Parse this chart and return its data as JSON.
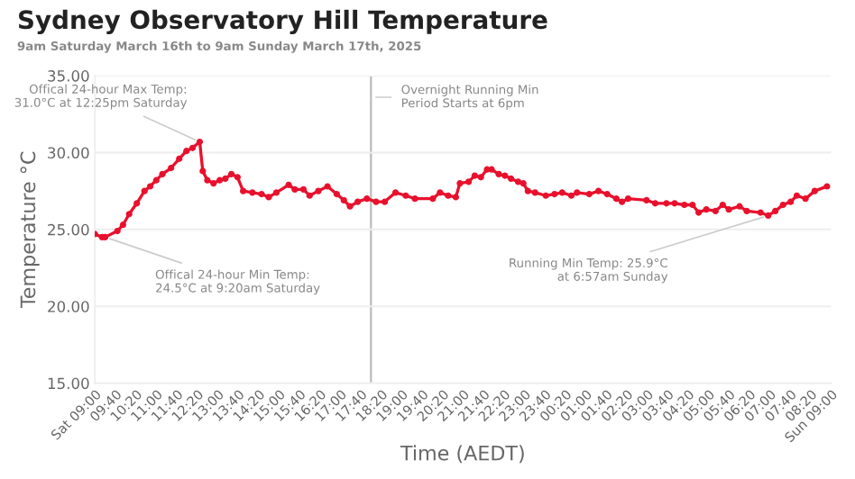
{
  "chart_data": {
    "type": "line",
    "title": "Sydney Observatory Hill Temperature",
    "subtitle": "9am Saturday March 16th to 9am Sunday March 17th, 2025",
    "xlabel": "Time (AEDT)",
    "ylabel": "Temperature °C",
    "series": [
      {
        "color": "#e8112d",
        "x": [
          "2025-03-16T09:00",
          "2025-03-16T09:14",
          "2025-03-16T09:20",
          "2025-03-16T09:44",
          "2025-03-16T09:55",
          "2025-03-16T10:07",
          "2025-03-16T10:22",
          "2025-03-16T10:37",
          "2025-03-16T10:48",
          "2025-03-16T11:00",
          "2025-03-16T11:12",
          "2025-03-16T11:29",
          "2025-03-16T11:45",
          "2025-03-16T11:59",
          "2025-03-16T12:11",
          "2025-03-16T12:25",
          "2025-03-16T12:31",
          "2025-03-16T12:40",
          "2025-03-16T12:52",
          "2025-03-16T13:04",
          "2025-03-16T13:15",
          "2025-03-16T13:27",
          "2025-03-16T13:39",
          "2025-03-16T13:50",
          "2025-03-16T14:08",
          "2025-03-16T14:26",
          "2025-03-16T14:40",
          "2025-03-16T14:55",
          "2025-03-16T15:19",
          "2025-03-16T15:31",
          "2025-03-16T15:48",
          "2025-03-16T16:00",
          "2025-03-16T16:17",
          "2025-03-16T16:35",
          "2025-03-16T16:53",
          "2025-03-16T17:07",
          "2025-03-16T17:19",
          "2025-03-16T17:34",
          "2025-03-16T17:52",
          "2025-03-16T18:10",
          "2025-03-16T18:27",
          "2025-03-16T18:48",
          "2025-03-16T19:08",
          "2025-03-16T19:26",
          "2025-03-16T20:01",
          "2025-03-16T20:15",
          "2025-03-16T20:31",
          "2025-03-16T20:46",
          "2025-03-16T20:54",
          "2025-03-16T21:11",
          "2025-03-16T21:23",
          "2025-03-16T21:35",
          "2025-03-16T21:47",
          "2025-03-16T21:56",
          "2025-03-16T22:10",
          "2025-03-16T22:22",
          "2025-03-16T22:34",
          "2025-03-16T22:48",
          "2025-03-16T22:58",
          "2025-03-16T23:07",
          "2025-03-16T23:21",
          "2025-03-16T23:42",
          "2025-03-16T23:59",
          "2025-03-17T00:14",
          "2025-03-17T00:32",
          "2025-03-17T00:43",
          "2025-03-17T01:07",
          "2025-03-17T01:25",
          "2025-03-17T01:42",
          "2025-03-17T02:00",
          "2025-03-17T02:11",
          "2025-03-17T02:23",
          "2025-03-17T02:59",
          "2025-03-17T03:16",
          "2025-03-17T03:38",
          "2025-03-17T03:54",
          "2025-03-17T04:13",
          "2025-03-17T04:29",
          "2025-03-17T04:41",
          "2025-03-17T04:56",
          "2025-03-17T05:14",
          "2025-03-17T05:28",
          "2025-03-17T05:40",
          "2025-03-17T06:01",
          "2025-03-17T06:15",
          "2025-03-17T06:42",
          "2025-03-17T06:57",
          "2025-03-17T07:11",
          "2025-03-17T07:26",
          "2025-03-17T07:41",
          "2025-03-17T07:53",
          "2025-03-17T08:10",
          "2025-03-17T08:28",
          "2025-03-17T08:52"
        ],
        "values": [
          24.7,
          24.5,
          24.5,
          24.9,
          25.3,
          26.0,
          26.7,
          27.5,
          27.8,
          28.2,
          28.6,
          29.0,
          29.6,
          30.1,
          30.3,
          30.7,
          28.8,
          28.2,
          28.0,
          28.2,
          28.3,
          28.6,
          28.4,
          27.5,
          27.4,
          27.3,
          27.1,
          27.4,
          27.9,
          27.6,
          27.6,
          27.2,
          27.5,
          27.8,
          27.3,
          26.9,
          26.5,
          26.8,
          27.0,
          26.8,
          26.8,
          27.4,
          27.2,
          27.0,
          27.0,
          27.4,
          27.2,
          27.1,
          28.0,
          28.1,
          28.5,
          28.4,
          28.9,
          28.9,
          28.6,
          28.5,
          28.3,
          28.1,
          28.0,
          27.5,
          27.4,
          27.2,
          27.3,
          27.4,
          27.2,
          27.4,
          27.3,
          27.5,
          27.3,
          27.0,
          26.8,
          27.0,
          26.9,
          26.7,
          26.7,
          26.7,
          26.6,
          26.6,
          26.1,
          26.3,
          26.2,
          26.6,
          26.3,
          26.5,
          26.2,
          26.1,
          25.9,
          26.2,
          26.6,
          26.8,
          27.2,
          27.0,
          27.5,
          27.8
        ]
      }
    ],
    "xlim": [
      "2025-03-16T09:00",
      "2025-03-17T09:00"
    ],
    "xticks": [
      {
        "value": "2025-03-16T09:00",
        "label": "Sat 09:00"
      },
      {
        "value": "2025-03-16T09:40",
        "label": "09:40"
      },
      {
        "value": "2025-03-16T10:20",
        "label": "10:20"
      },
      {
        "value": "2025-03-16T11:00",
        "label": "11:00"
      },
      {
        "value": "2025-03-16T11:40",
        "label": "11:40"
      },
      {
        "value": "2025-03-16T12:20",
        "label": "12:20"
      },
      {
        "value": "2025-03-16T13:00",
        "label": "13:00"
      },
      {
        "value": "2025-03-16T13:40",
        "label": "13:40"
      },
      {
        "value": "2025-03-16T14:20",
        "label": "14:20"
      },
      {
        "value": "2025-03-16T15:00",
        "label": "15:00"
      },
      {
        "value": "2025-03-16T15:40",
        "label": "15:40"
      },
      {
        "value": "2025-03-16T16:20",
        "label": "16:20"
      },
      {
        "value": "2025-03-16T17:00",
        "label": "17:00"
      },
      {
        "value": "2025-03-16T17:40",
        "label": "17:40"
      },
      {
        "value": "2025-03-16T18:20",
        "label": "18:20"
      },
      {
        "value": "2025-03-16T19:00",
        "label": "19:00"
      },
      {
        "value": "2025-03-16T19:40",
        "label": "19:40"
      },
      {
        "value": "2025-03-16T20:20",
        "label": "20:20"
      },
      {
        "value": "2025-03-16T21:00",
        "label": "21:00"
      },
      {
        "value": "2025-03-16T21:40",
        "label": "21:40"
      },
      {
        "value": "2025-03-16T22:20",
        "label": "22:20"
      },
      {
        "value": "2025-03-16T23:00",
        "label": "23:00"
      },
      {
        "value": "2025-03-16T23:40",
        "label": "23:40"
      },
      {
        "value": "2025-03-17T00:20",
        "label": "00:20"
      },
      {
        "value": "2025-03-17T01:00",
        "label": "01:00"
      },
      {
        "value": "2025-03-17T01:40",
        "label": "01:40"
      },
      {
        "value": "2025-03-17T02:20",
        "label": "02:20"
      },
      {
        "value": "2025-03-17T03:00",
        "label": "03:00"
      },
      {
        "value": "2025-03-17T03:40",
        "label": "03:40"
      },
      {
        "value": "2025-03-17T04:20",
        "label": "04:20"
      },
      {
        "value": "2025-03-17T05:00",
        "label": "05:00"
      },
      {
        "value": "2025-03-17T05:40",
        "label": "05:40"
      },
      {
        "value": "2025-03-17T06:20",
        "label": "06:20"
      },
      {
        "value": "2025-03-17T07:00",
        "label": "07:00"
      },
      {
        "value": "2025-03-17T07:40",
        "label": "07:40"
      },
      {
        "value": "2025-03-17T08:20",
        "label": "08:20"
      },
      {
        "value": "2025-03-17T09:00",
        "label": "Sun 09:00"
      }
    ],
    "ylim": [
      15,
      35
    ],
    "yticks": [
      {
        "value": 15,
        "label": "15.00"
      },
      {
        "value": 20,
        "label": "20.00"
      },
      {
        "value": 25,
        "label": "25.00"
      },
      {
        "value": 30,
        "label": "30.00"
      },
      {
        "value": 35,
        "label": "35.00"
      }
    ],
    "grid": "y",
    "marker": "circle",
    "line_style": "solid",
    "ref_lines": [
      {
        "axis": "x",
        "value": "2025-03-16T18:00",
        "label": "Overnight Running Min\nPeriod Starts at 6pm",
        "color": "#bbbbbb"
      }
    ],
    "annotations": [
      {
        "text": "Offical 24-hour Max Temp:\n31.0°C at 12:25pm Saturday",
        "x": "2025-03-16T12:25",
        "y": 30.7
      },
      {
        "text": "Offical 24-hour Min Temp:\n24.5°C at 9:20am Saturday",
        "x": "2025-03-16T09:20",
        "y": 24.5
      },
      {
        "text": "Running Min Temp: 25.9°C\nat 6:57am Sunday",
        "x": "2025-03-17T06:57",
        "y": 25.9
      }
    ]
  }
}
